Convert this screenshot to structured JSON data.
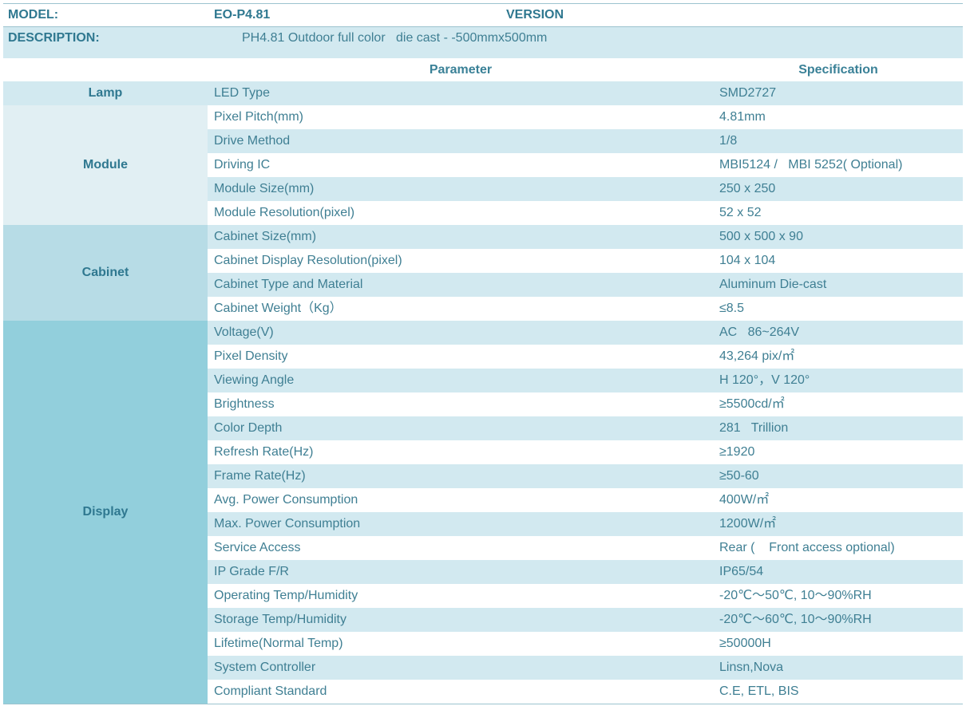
{
  "header": {
    "model_label": "MODEL:",
    "model_value": "EO-P4.81",
    "version_label": "VERSION",
    "description_label": "DESCRIPTION:",
    "description_value": "PH4.81 Outdoor full color   die cast - -500mmx500mm"
  },
  "columns": {
    "parameter": "Parameter",
    "specification": "Specification"
  },
  "colors": {
    "lamp": "#d2e9f0",
    "module": "#e1eff3",
    "cabinet": "#b7dce6",
    "display": "#92cfdc",
    "row_alt": "#d2e9f0",
    "text": "#3f7f93"
  },
  "groups": [
    {
      "name": "Lamp",
      "rows": [
        {
          "parameter": "LED Type",
          "spec": "SMD2727"
        }
      ]
    },
    {
      "name": "Module",
      "rows": [
        {
          "parameter": "Pixel Pitch(mm)",
          "spec": "4.81mm"
        },
        {
          "parameter": "Drive Method",
          "spec": "1/8"
        },
        {
          "parameter": "Driving IC",
          "spec": "MBI5124 /   MBI 5252( Optional)"
        },
        {
          "parameter": "Module Size(mm)",
          "spec": "250 x 250"
        },
        {
          "parameter": "Module Resolution(pixel)",
          "spec": "52 x 52"
        }
      ]
    },
    {
      "name": "Cabinet",
      "rows": [
        {
          "parameter": "Cabinet Size(mm)",
          "spec": "500 x 500 x 90"
        },
        {
          "parameter": "Cabinet Display Resolution(pixel)",
          "spec": "104 x 104"
        },
        {
          "parameter": "Cabinet Type and Material",
          "spec": "Aluminum Die-cast"
        },
        {
          "parameter": "Cabinet Weight（Kg）",
          "spec": "≤8.5"
        }
      ]
    },
    {
      "name": "Display",
      "rows": [
        {
          "parameter": "Voltage(V)",
          "spec": "AC   86~264V"
        },
        {
          "parameter": "Pixel Density",
          "spec": "43,264 pix/㎡"
        },
        {
          "parameter": "Viewing Angle",
          "spec": "H 120°，V 120°"
        },
        {
          "parameter": "Brightness",
          "spec": "≥5500cd/㎡"
        },
        {
          "parameter": "Color Depth",
          "spec": "281   Trillion"
        },
        {
          "parameter": "Refresh Rate(Hz)",
          "spec": "≥1920"
        },
        {
          "parameter": "Frame Rate(Hz)",
          "spec": "≥50-60"
        },
        {
          "parameter": "Avg. Power Consumption",
          "spec": "400W/㎡"
        },
        {
          "parameter": "Max. Power Consumption",
          "spec": "1200W/㎡"
        },
        {
          "parameter": "Service Access",
          "spec": "Rear (    Front access optional)"
        },
        {
          "parameter": "IP Grade F/R",
          "spec": "IP65/54"
        },
        {
          "parameter": "Operating Temp/Humidity",
          "spec": "-20℃～50℃, 10～90%RH"
        },
        {
          "parameter": "Storage Temp/Humidity",
          "spec": "-20℃～60℃, 10～90%RH"
        },
        {
          "parameter": "Lifetime(Normal Temp)",
          "spec": "≥50000H"
        },
        {
          "parameter": "System Controller",
          "spec": "Linsn,Nova"
        },
        {
          "parameter": "Compliant Standard",
          "spec": "C.E, ETL, BIS"
        }
      ]
    }
  ]
}
